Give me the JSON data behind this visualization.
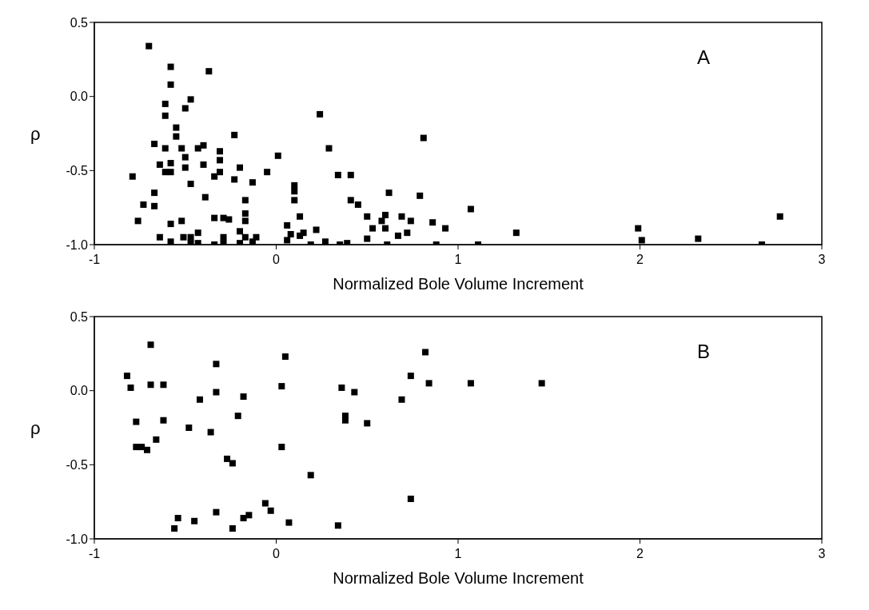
{
  "chart_data": [
    {
      "type": "scatter",
      "annotations": [
        "A"
      ],
      "xlabel": "Normalized Bole Volume Increment",
      "ylabel": "ρ",
      "xlim": [
        -1,
        3
      ],
      "xticks": [
        -1,
        0,
        1,
        2,
        3
      ],
      "ylim": [
        -1,
        0.5
      ],
      "yticks": [
        {
          "value": 0.5,
          "label": "0.5"
        },
        {
          "value": 0,
          "label": "0.0"
        },
        {
          "value": -0.5,
          "label": "-0.5"
        },
        {
          "value": -1,
          "label": "-1.0"
        }
      ],
      "marker": "square",
      "legend": false,
      "grid": false,
      "series": [
        {
          "color": "#000000",
          "x": [
            -0.7,
            -0.79,
            -0.76,
            -0.73,
            -0.67,
            -0.67,
            -0.67,
            -0.64,
            -0.64,
            -0.61,
            -0.61,
            -0.61,
            -0.58,
            -0.58,
            -0.58,
            -0.58,
            -0.61,
            -0.58,
            -0.58,
            -0.55,
            -0.55,
            -0.52,
            -0.52,
            -0.51,
            -0.5,
            -0.5,
            -0.5,
            -0.47,
            -0.47,
            -0.47,
            -0.47,
            -0.43,
            -0.43,
            -0.43,
            -0.4,
            -0.4,
            -0.39,
            -0.37,
            -0.34,
            -0.34,
            -0.34,
            -0.31,
            -0.31,
            -0.31,
            -0.29,
            -0.29,
            -0.29,
            -0.26,
            -0.23,
            -0.23,
            -0.2,
            -0.2,
            -0.2,
            -0.17,
            -0.17,
            -0.17,
            -0.17,
            -0.13,
            -0.13,
            -0.11,
            -0.05,
            0.01,
            0.06,
            0.06,
            0.08,
            0.1,
            0.1,
            0.1,
            0.13,
            0.13,
            0.15,
            0.19,
            0.22,
            0.24,
            0.27,
            0.29,
            0.34,
            0.35,
            0.39,
            0.41,
            0.41,
            0.45,
            0.5,
            0.5,
            0.53,
            0.58,
            0.6,
            0.6,
            0.61,
            0.62,
            0.67,
            0.69,
            0.72,
            0.74,
            0.79,
            0.81,
            0.86,
            0.88,
            0.93,
            1.07,
            1.11,
            1.32,
            1.99,
            2.01,
            2.32,
            2.67,
            2.77
          ],
          "values": [
            0.34,
            -0.54,
            -0.84,
            -0.73,
            -0.32,
            -0.65,
            -0.74,
            -0.46,
            -0.95,
            -0.35,
            -0.05,
            -0.13,
            0.2,
            0.08,
            -0.45,
            -0.51,
            -0.51,
            -0.86,
            -0.98,
            -0.21,
            -0.27,
            -0.35,
            -0.84,
            -0.95,
            -0.41,
            -0.48,
            -0.08,
            -0.02,
            -0.59,
            -0.95,
            -0.99,
            -0.35,
            -0.92,
            -0.99,
            -0.46,
            -0.33,
            -0.68,
            0.17,
            -0.54,
            -0.82,
            -1.0,
            -0.37,
            -0.43,
            -0.51,
            -0.82,
            -0.95,
            -0.99,
            -0.83,
            -0.26,
            -0.56,
            -0.48,
            -0.91,
            -0.99,
            -0.7,
            -0.79,
            -0.84,
            -0.95,
            -0.58,
            -0.98,
            -0.95,
            -0.51,
            -0.4,
            -0.87,
            -0.97,
            -0.93,
            -0.6,
            -0.64,
            -0.7,
            -0.81,
            -0.94,
            -0.92,
            -1.0,
            -0.9,
            -0.12,
            -0.98,
            -0.35,
            -0.53,
            -1.0,
            -0.99,
            -0.53,
            -0.7,
            -0.73,
            -0.81,
            -0.96,
            -0.89,
            -0.84,
            -0.8,
            -0.89,
            -1.0,
            -0.65,
            -0.94,
            -0.81,
            -0.92,
            -0.84,
            -0.67,
            -0.28,
            -0.85,
            -1.0,
            -0.89,
            -0.76,
            -1.0,
            -0.92,
            -0.89,
            -0.97,
            -0.96,
            -1.0,
            -0.81
          ]
        }
      ]
    },
    {
      "type": "scatter",
      "annotations": [
        "B"
      ],
      "xlabel": "Normalized Bole Volume Increment",
      "ylabel": "ρ",
      "xlim": [
        -1,
        3
      ],
      "xticks": [
        -1,
        0,
        1,
        2,
        3
      ],
      "ylim": [
        -1,
        0.5
      ],
      "yticks": [
        {
          "value": 0.5,
          "label": "0.5"
        },
        {
          "value": 0,
          "label": "0.0"
        },
        {
          "value": -0.5,
          "label": "-0.5"
        },
        {
          "value": -1,
          "label": "-1.0"
        }
      ],
      "marker": "square",
      "legend": false,
      "grid": false,
      "series": [
        {
          "color": "#000000",
          "x": [
            -0.82,
            -0.8,
            -0.77,
            -0.77,
            -0.74,
            -0.71,
            -0.69,
            -0.69,
            -0.66,
            -0.62,
            -0.62,
            -0.56,
            -0.54,
            -0.48,
            -0.45,
            -0.42,
            -0.36,
            -0.33,
            -0.33,
            -0.33,
            -0.27,
            -0.24,
            -0.24,
            -0.21,
            -0.18,
            -0.18,
            -0.15,
            -0.06,
            -0.03,
            0.03,
            0.03,
            0.05,
            0.07,
            0.19,
            0.34,
            0.36,
            0.38,
            0.38,
            0.43,
            0.5,
            0.69,
            0.74,
            0.74,
            0.82,
            0.84,
            1.07,
            1.46
          ],
          "values": [
            0.1,
            0.02,
            -0.21,
            -0.38,
            -0.38,
            -0.4,
            0.31,
            0.04,
            -0.33,
            0.04,
            -0.2,
            -0.93,
            -0.86,
            -0.25,
            -0.88,
            -0.06,
            -0.28,
            0.18,
            -0.01,
            -0.82,
            -0.46,
            -0.49,
            -0.93,
            -0.17,
            -0.04,
            -0.86,
            -0.84,
            -0.76,
            -0.81,
            0.03,
            -0.38,
            0.23,
            -0.89,
            -0.57,
            -0.91,
            0.02,
            -0.17,
            -0.2,
            -0.01,
            -0.22,
            -0.06,
            0.1,
            -0.73,
            0.26,
            0.05,
            0.05,
            0.05
          ]
        }
      ]
    }
  ]
}
